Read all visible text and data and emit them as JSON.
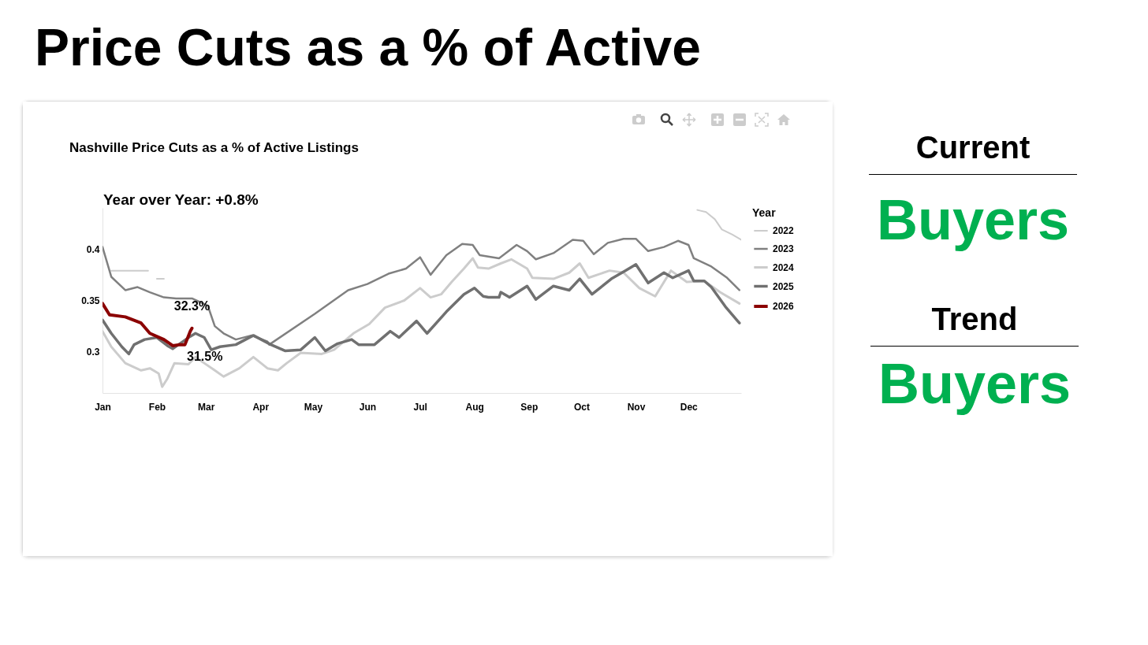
{
  "chart_data": {
    "type": "line",
    "title": "Price Cuts as a % of Active",
    "subtitle": "Nashville Price Cuts as a % of Active Listings",
    "legend_title": "Year",
    "legend": "top right",
    "grid": false,
    "xlim": [
      "--01-01",
      "--12-31"
    ],
    "xticks": [
      {
        "value": "--01-01",
        "label": "Jan"
      },
      {
        "value": "--02-01",
        "label": "Feb"
      },
      {
        "value": "--03-01",
        "label": "Mar"
      },
      {
        "value": "--04-01",
        "label": "Apr"
      },
      {
        "value": "--05-01",
        "label": "May"
      },
      {
        "value": "--06-01",
        "label": "Jun"
      },
      {
        "value": "--07-01",
        "label": "Jul"
      },
      {
        "value": "--08-01",
        "label": "Aug"
      },
      {
        "value": "--09-01",
        "label": "Sep"
      },
      {
        "value": "--10-01",
        "label": "Oct"
      },
      {
        "value": "--11-01",
        "label": "Nov"
      },
      {
        "value": "--12-01",
        "label": "Dec"
      }
    ],
    "ylim": [
      0.26,
      0.44
    ],
    "yticks": [
      0.3,
      0.35,
      0.4
    ],
    "series": [
      {
        "name": "2022",
        "color": "#cccccc",
        "x": [
          "--01-06",
          "--01-27",
          "--01-29",
          "--02-01",
          "--02-05",
          "--02-07",
          "--12-06",
          "--12-11",
          "--12-16",
          "--12-20",
          "--12-26",
          "--12-31"
        ],
        "values": [
          0.379,
          0.379,
          null,
          0.371,
          0.371,
          null,
          0.438,
          0.436,
          0.429,
          0.419,
          0.414,
          0.409
        ]
      },
      {
        "name": "2023",
        "color": "#808080",
        "x": [
          "--01-01",
          "--01-06",
          "--01-14",
          "--01-21",
          "--01-28",
          "--02-05",
          "--02-12",
          "--02-21",
          "--03-02",
          "--03-06",
          "--03-11",
          "--03-18",
          "--03-27",
          "--04-05",
          "--04-06",
          "--05-02",
          "--05-21",
          "--06-01",
          "--06-13",
          "--06-23",
          "--07-01",
          "--07-07",
          "--07-16",
          "--07-25",
          "--07-31",
          "--08-04",
          "--08-15",
          "--08-25",
          "--08-31",
          "--09-05",
          "--09-15",
          "--09-26",
          "--10-02",
          "--10-08",
          "--10-16",
          "--10-25",
          "--11-01",
          "--11-08",
          "--11-17",
          "--11-25",
          "--12-01",
          "--12-04",
          "--12-14",
          "--12-23",
          "--12-30"
        ],
        "values": [
          0.402,
          0.373,
          0.36,
          0.363,
          0.358,
          0.353,
          0.352,
          0.352,
          0.345,
          0.325,
          0.318,
          0.312,
          0.316,
          0.31,
          0.307,
          0.337,
          0.36,
          0.366,
          0.376,
          0.381,
          0.392,
          0.375,
          0.394,
          0.405,
          0.404,
          0.394,
          0.391,
          0.404,
          0.398,
          0.39,
          0.396,
          0.409,
          0.408,
          0.395,
          0.406,
          0.41,
          0.41,
          0.398,
          0.402,
          0.408,
          0.404,
          0.391,
          0.383,
          0.372,
          0.36
        ]
      },
      {
        "name": "2024",
        "color": "#cccccc",
        "x": [
          "--01-01",
          "--01-06",
          "--01-14",
          "--01-23",
          "--01-28",
          "--02-02",
          "--02-04",
          "--02-07",
          "--02-11",
          "--02-19",
          "--02-23",
          "--02-28",
          "--03-06",
          "--03-11",
          "--03-20",
          "--03-28",
          "--04-05",
          "--04-11",
          "--04-16",
          "--04-24",
          "--05-06",
          "--05-13",
          "--05-24",
          "--06-02",
          "--06-11",
          "--06-22",
          "--07-01",
          "--07-07",
          "--07-13",
          "--07-19",
          "--07-26",
          "--07-31",
          "--08-03",
          "--08-09",
          "--08-16",
          "--08-22",
          "--08-31",
          "--09-03",
          "--09-15",
          "--09-24",
          "--09-30",
          "--10-05",
          "--10-17",
          "--10-25",
          "--11-03",
          "--11-12",
          "--11-21",
          "--11-30",
          "--12-10",
          "--12-19",
          "--12-30"
        ],
        "values": [
          0.32,
          0.305,
          0.289,
          0.282,
          0.284,
          0.279,
          0.266,
          0.274,
          0.289,
          0.288,
          0.295,
          0.289,
          0.282,
          0.276,
          0.284,
          0.295,
          0.284,
          0.282,
          0.289,
          0.299,
          0.298,
          0.302,
          0.318,
          0.327,
          0.343,
          0.35,
          0.362,
          0.353,
          0.356,
          0.368,
          0.381,
          0.391,
          0.382,
          0.381,
          0.386,
          0.39,
          0.381,
          0.372,
          0.371,
          0.377,
          0.386,
          0.372,
          0.379,
          0.377,
          0.362,
          0.354,
          0.379,
          0.368,
          0.369,
          0.358,
          0.347
        ]
      },
      {
        "name": "2025",
        "color": "#707070",
        "x": [
          "--01-01",
          "--01-06",
          "--01-12",
          "--01-16",
          "--01-19",
          "--01-25",
          "--02-01",
          "--02-07",
          "--02-10",
          "--02-20",
          "--02-23",
          "--02-28",
          "--03-04",
          "--03-09",
          "--03-18",
          "--03-28",
          "--04-07",
          "--04-15",
          "--04-24",
          "--05-02",
          "--05-08",
          "--05-15",
          "--05-23",
          "--05-27",
          "--06-05",
          "--06-14",
          "--06-19",
          "--06-29",
          "--07-05",
          "--07-16",
          "--07-26",
          "--08-01",
          "--08-06",
          "--08-09",
          "--08-15",
          "--08-16",
          "--08-21",
          "--08-31",
          "--09-05",
          "--09-15",
          "--09-24",
          "--09-30",
          "--10-07",
          "--10-18",
          "--10-26",
          "--11-01",
          "--11-08",
          "--11-17",
          "--11-22",
          "--12-01",
          "--12-04",
          "--12-10",
          "--12-14",
          "--12-22",
          "--12-29",
          "--12-30"
        ],
        "values": [
          0.331,
          0.318,
          0.305,
          0.298,
          0.307,
          0.312,
          0.314,
          0.306,
          0.303,
          0.315,
          0.318,
          0.314,
          0.302,
          0.305,
          0.307,
          0.316,
          0.307,
          0.301,
          0.302,
          0.314,
          0.301,
          0.308,
          0.312,
          0.307,
          0.307,
          0.32,
          0.314,
          0.33,
          0.318,
          0.339,
          0.356,
          0.362,
          0.354,
          0.353,
          0.353,
          0.358,
          0.353,
          0.364,
          0.351,
          0.364,
          0.36,
          0.371,
          0.356,
          0.371,
          0.379,
          0.385,
          0.367,
          0.377,
          0.372,
          0.379,
          0.369,
          0.369,
          0.363,
          0.344,
          0.33,
          0.328
        ]
      },
      {
        "name": "2026",
        "color": "#8b0000",
        "x": [
          "--01-01",
          "--01-05",
          "--01-14",
          "--01-23",
          "--01-28",
          "--02-05",
          "--02-10",
          "--02-14",
          "--02-17",
          "--02-20",
          "--02-21"
        ],
        "values": [
          0.347,
          0.336,
          0.334,
          0.328,
          0.318,
          0.312,
          0.306,
          0.307,
          0.307,
          0.32,
          0.323
        ]
      }
    ],
    "annotations": [
      "Year over Year: +0.8%",
      {
        "text": "32.3%",
        "x": "--02-21",
        "y": 0.323
      },
      {
        "text": "31.5%",
        "x": "--02-22",
        "y": 0.315
      },
      "Current",
      "Buyers",
      "Trend",
      "Buyers"
    ]
  }
}
